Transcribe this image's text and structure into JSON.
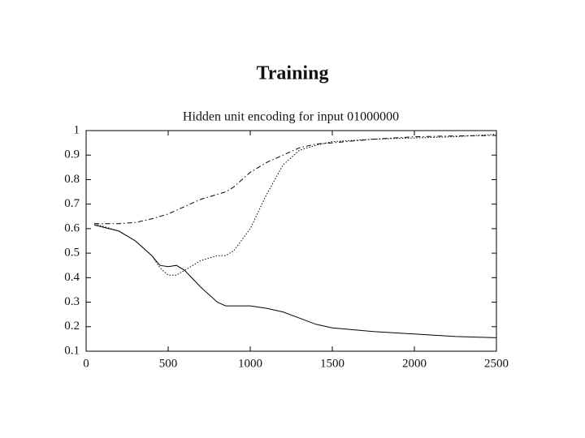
{
  "slide_title": "Training",
  "chart_data": {
    "type": "line",
    "title": "Hidden unit encoding for input 01000000",
    "x": [
      50,
      200,
      300,
      400,
      450,
      500,
      550,
      600,
      700,
      800,
      850,
      900,
      1000,
      1100,
      1200,
      1300,
      1400,
      1500,
      1750,
      2000,
      2250,
      2500
    ],
    "series": [
      {
        "color": "#000000",
        "dash": "dashdot",
        "values": [
          0.62,
          0.62,
          0.625,
          0.64,
          0.65,
          0.66,
          0.675,
          0.69,
          0.72,
          0.74,
          0.75,
          0.77,
          0.83,
          0.87,
          0.9,
          0.93,
          0.945,
          0.95,
          0.965,
          0.975,
          0.978,
          0.98
        ]
      },
      {
        "color": "#000000",
        "dash": "dotted",
        "values": [
          0.62,
          0.59,
          0.55,
          0.49,
          0.44,
          0.41,
          0.41,
          0.43,
          0.47,
          0.49,
          0.49,
          0.51,
          0.6,
          0.74,
          0.86,
          0.92,
          0.94,
          0.955,
          0.965,
          0.97,
          0.975,
          0.985
        ]
      },
      {
        "color": "#000000",
        "dash": "solid",
        "values": [
          0.615,
          0.59,
          0.55,
          0.49,
          0.45,
          0.445,
          0.45,
          0.43,
          0.36,
          0.3,
          0.285,
          0.285,
          0.285,
          0.275,
          0.26,
          0.235,
          0.21,
          0.195,
          0.18,
          0.17,
          0.16,
          0.155
        ]
      }
    ],
    "xlim": [
      0,
      2500
    ],
    "xticks": [
      0,
      500,
      1000,
      1500,
      2000,
      2500
    ],
    "ylim": [
      0.1,
      1
    ],
    "yticks": [
      0.1,
      0.2,
      0.3,
      0.4,
      0.5,
      0.6,
      0.7,
      0.8,
      0.9,
      1
    ],
    "grid": false
  }
}
